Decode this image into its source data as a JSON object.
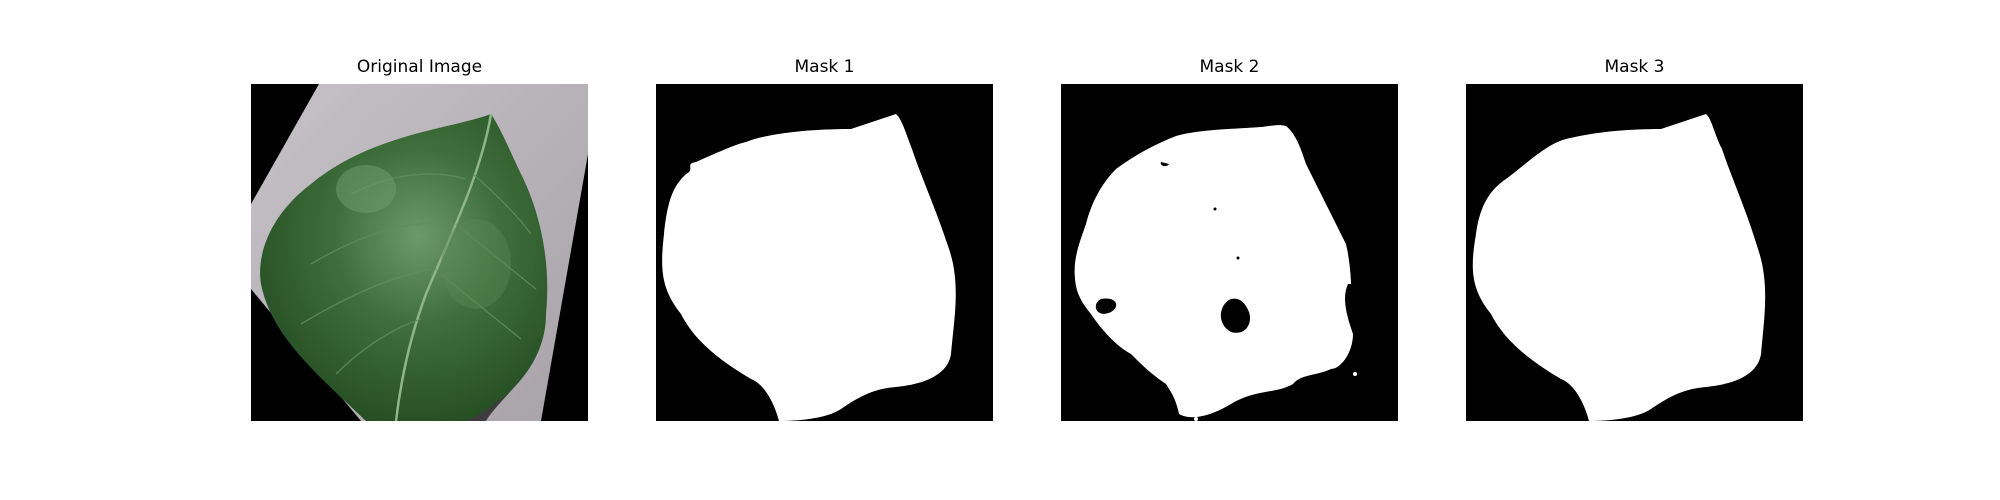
{
  "panels": [
    {
      "title": "Original Image"
    },
    {
      "title": "Mask 1"
    },
    {
      "title": "Mask 2"
    },
    {
      "title": "Mask 3"
    }
  ],
  "colors": {
    "background": "#ffffff",
    "mask_background": "#000000",
    "mask_foreground": "#ffffff",
    "leaf": "#3f6e3c",
    "surface": "#b3aeb3"
  }
}
